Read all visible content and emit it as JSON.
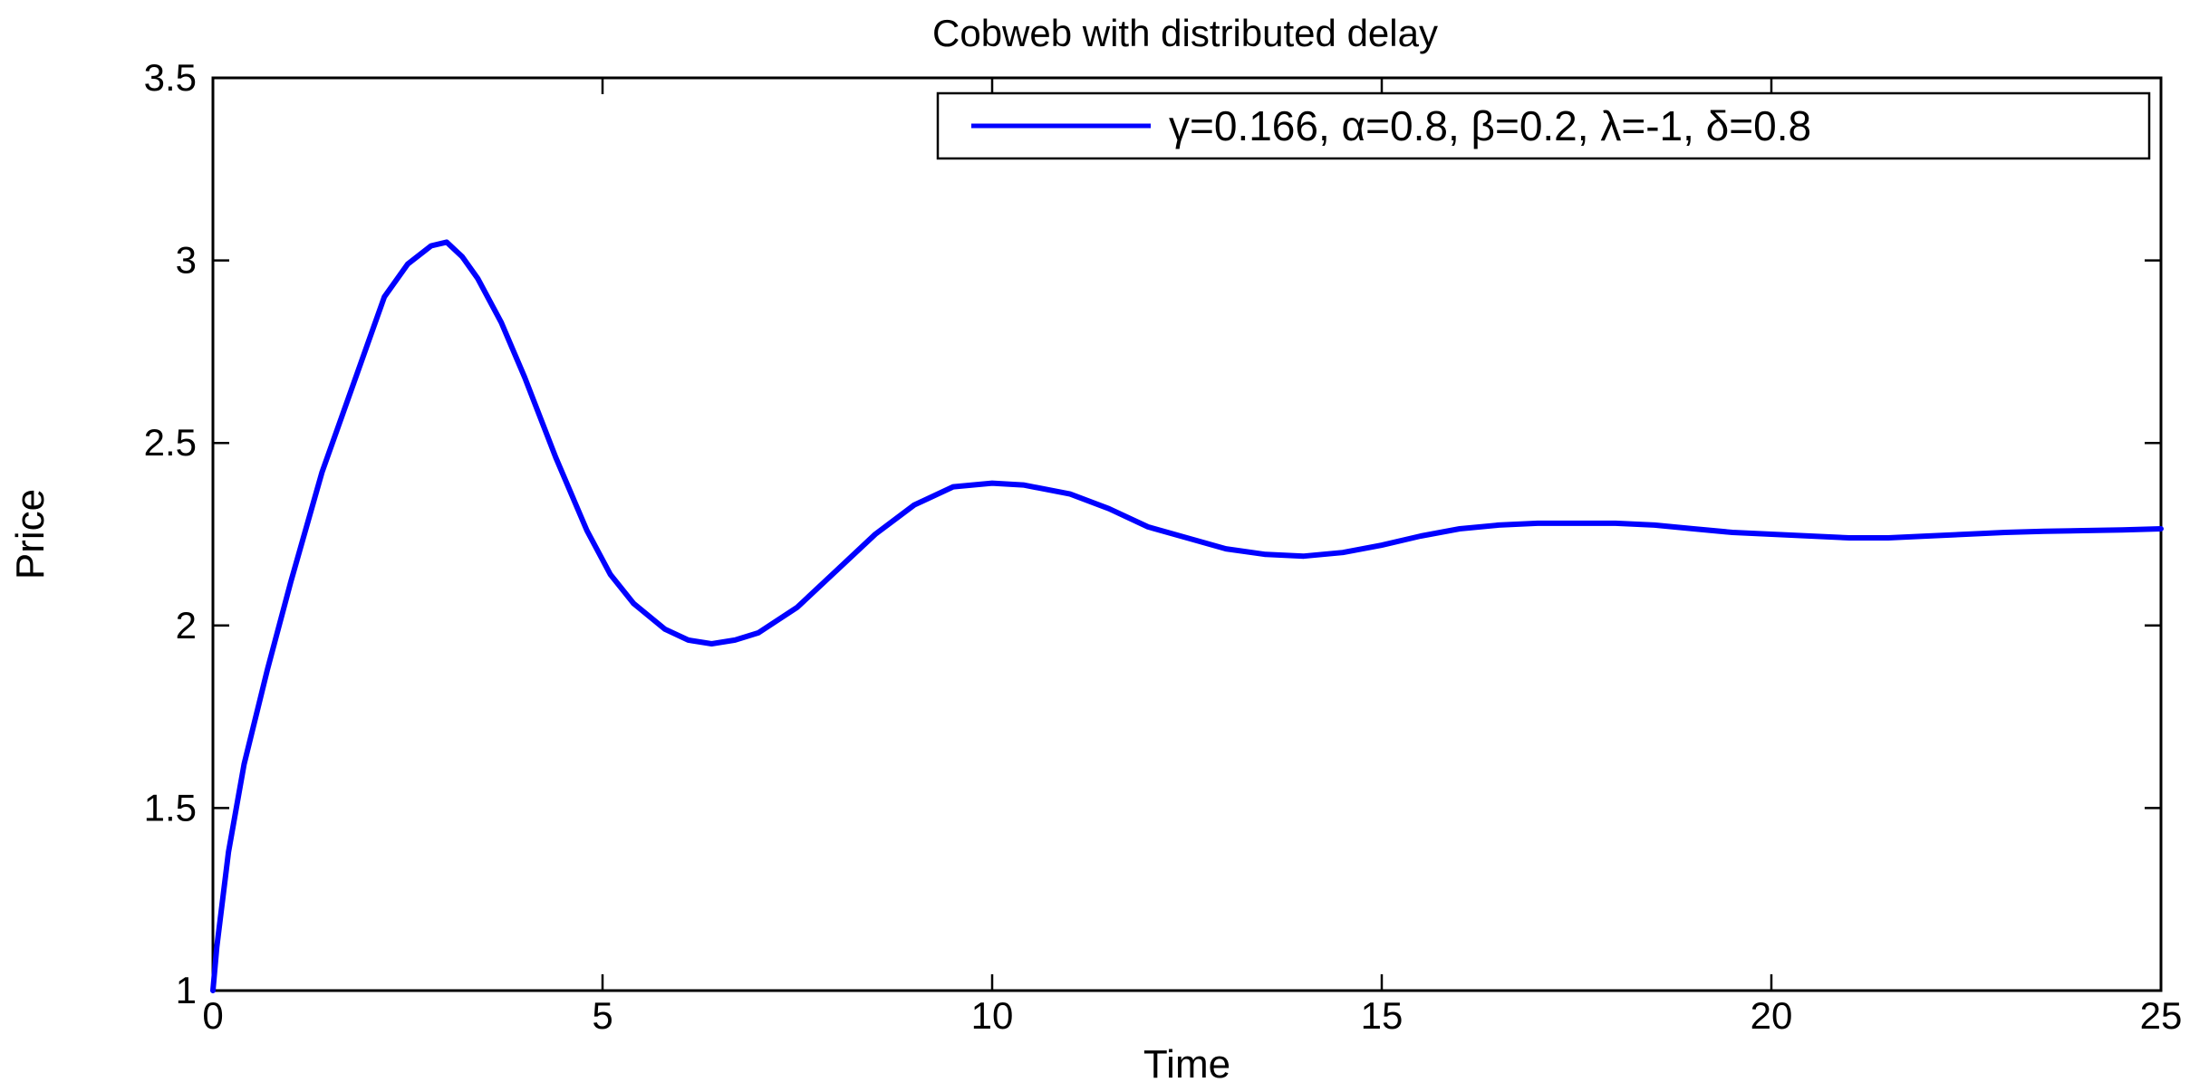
{
  "chart_data": {
    "type": "line",
    "title": "Cobweb with distributed delay",
    "xlabel": "Time",
    "ylabel": "Price",
    "xlim": [
      0,
      25
    ],
    "ylim": [
      1,
      3.5
    ],
    "xticks": [
      0,
      5,
      10,
      15,
      20,
      25
    ],
    "yticks": [
      1,
      1.5,
      2,
      2.5,
      3,
      3.5
    ],
    "xtick_labels": [
      "0",
      "5",
      "10",
      "15",
      "20",
      "25"
    ],
    "ytick_labels": [
      "1",
      "1.5",
      "2",
      "2.5",
      "3",
      "3.5"
    ],
    "grid": false,
    "legend_position": "top-right",
    "series": [
      {
        "name": "γ=0.166, α=0.8, β=0.2, λ=-1, δ=0.8",
        "color": "#0000ff",
        "x": [
          0,
          0.05,
          0.2,
          0.4,
          0.7,
          1.0,
          1.4,
          1.8,
          2.2,
          2.5,
          2.8,
          3.0,
          3.2,
          3.4,
          3.7,
          4.0,
          4.4,
          4.8,
          5.1,
          5.4,
          5.8,
          6.1,
          6.4,
          6.7,
          7.0,
          7.5,
          8.0,
          8.5,
          9.0,
          9.5,
          10.0,
          10.4,
          11.0,
          11.5,
          12.0,
          12.5,
          13.0,
          13.5,
          14.0,
          14.5,
          15.0,
          15.5,
          16.0,
          16.5,
          17.0,
          17.5,
          18.0,
          18.5,
          19.0,
          19.5,
          20.0,
          20.5,
          21.0,
          21.5,
          22.0,
          22.5,
          23.0,
          23.5,
          24.0,
          24.5,
          25.0
        ],
        "y": [
          1.0,
          1.12,
          1.38,
          1.62,
          1.88,
          2.12,
          2.42,
          2.66,
          2.9,
          2.99,
          3.04,
          3.05,
          3.01,
          2.95,
          2.83,
          2.68,
          2.46,
          2.26,
          2.14,
          2.06,
          1.99,
          1.96,
          1.95,
          1.96,
          1.98,
          2.05,
          2.15,
          2.25,
          2.33,
          2.38,
          2.39,
          2.385,
          2.36,
          2.32,
          2.27,
          2.24,
          2.21,
          2.195,
          2.19,
          2.2,
          2.22,
          2.245,
          2.265,
          2.275,
          2.28,
          2.28,
          2.28,
          2.275,
          2.265,
          2.255,
          2.25,
          2.245,
          2.24,
          2.24,
          2.245,
          2.25,
          2.255,
          2.258,
          2.26,
          2.262,
          2.265
        ]
      }
    ]
  }
}
